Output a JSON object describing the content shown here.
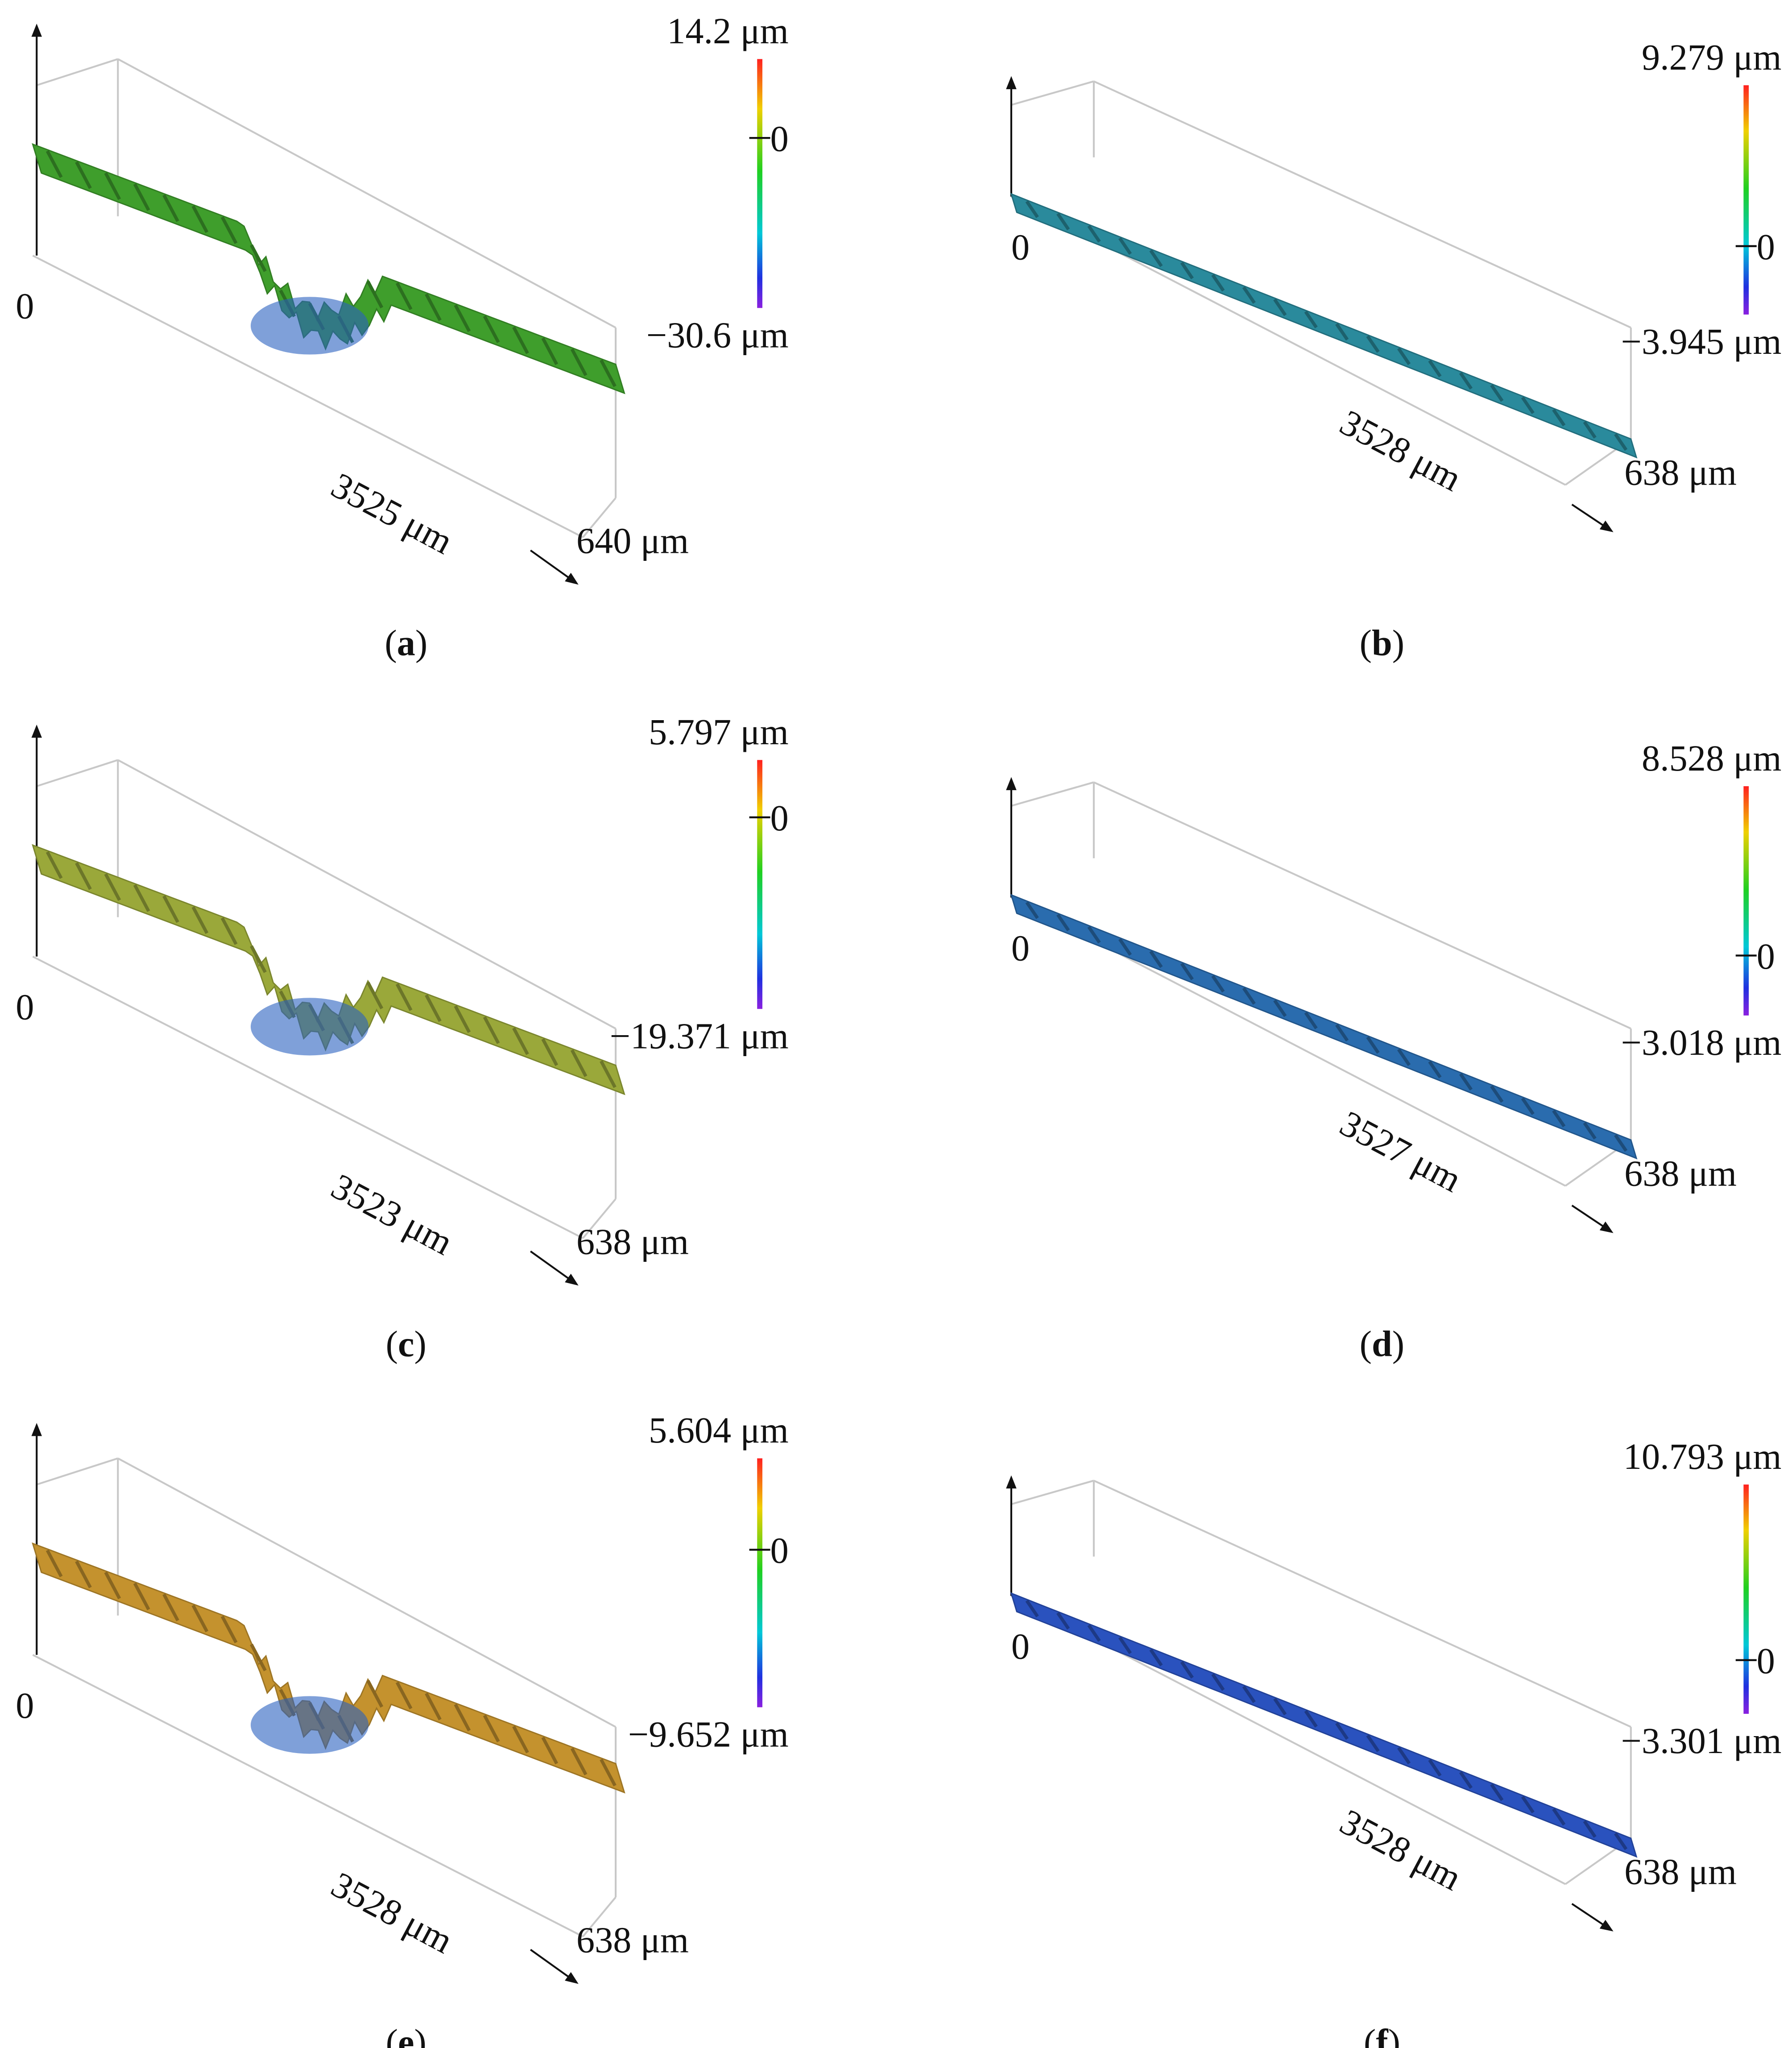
{
  "caption_brackets": [
    "(",
    ")"
  ],
  "panels": [
    {
      "label": "a",
      "color_max": {
        "value": 14.2,
        "label": "14.2 μm"
      },
      "color_zero": {
        "value": 0,
        "label": "0"
      },
      "color_min": {
        "value": -30.6,
        "label": "−30.6 μm"
      },
      "origin": "0",
      "length": "3525 μm",
      "width": "640 μm",
      "surface_color": "#3f9e2c",
      "profile": "step"
    },
    {
      "label": "b",
      "color_max": {
        "value": 9.279,
        "label": "9.279 μm"
      },
      "color_zero": {
        "value": 0,
        "label": "0"
      },
      "color_min": {
        "value": -3.945,
        "label": "−3.945 μm"
      },
      "origin": "0",
      "length": "3528 μm",
      "width": "638 μm",
      "surface_color": "#2a8a9c",
      "profile": "flat"
    },
    {
      "label": "c",
      "color_max": {
        "value": 5.797,
        "label": "5.797 μm"
      },
      "color_zero": {
        "value": 0,
        "label": "0"
      },
      "color_min": {
        "value": -19.371,
        "label": "−19.371 μm"
      },
      "origin": "0",
      "length": "3523 μm",
      "width": "638 μm",
      "surface_color": "#9aa83a",
      "profile": "step"
    },
    {
      "label": "d",
      "color_max": {
        "value": 8.528,
        "label": "8.528 μm"
      },
      "color_zero": {
        "value": 0,
        "label": "0"
      },
      "color_min": {
        "value": -3.018,
        "label": "−3.018 μm"
      },
      "origin": "0",
      "length": "3527 μm",
      "width": "638 μm",
      "surface_color": "#2a6cae",
      "profile": "flat"
    },
    {
      "label": "e",
      "color_max": {
        "value": 5.604,
        "label": "5.604 μm"
      },
      "color_zero": {
        "value": 0,
        "label": "0"
      },
      "color_min": {
        "value": -9.652,
        "label": "−9.652 μm"
      },
      "origin": "0",
      "length": "3528 μm",
      "width": "638 μm",
      "surface_color": "#c4922e",
      "profile": "step"
    },
    {
      "label": "f",
      "color_max": {
        "value": 10.793,
        "label": "10.793 μm"
      },
      "color_zero": {
        "value": 0,
        "label": "0"
      },
      "color_min": {
        "value": -3.301,
        "label": "−3.301 μm"
      },
      "origin": "0",
      "length": "3528 μm",
      "width": "638 μm",
      "surface_color": "#2a52be",
      "profile": "flat"
    }
  ]
}
